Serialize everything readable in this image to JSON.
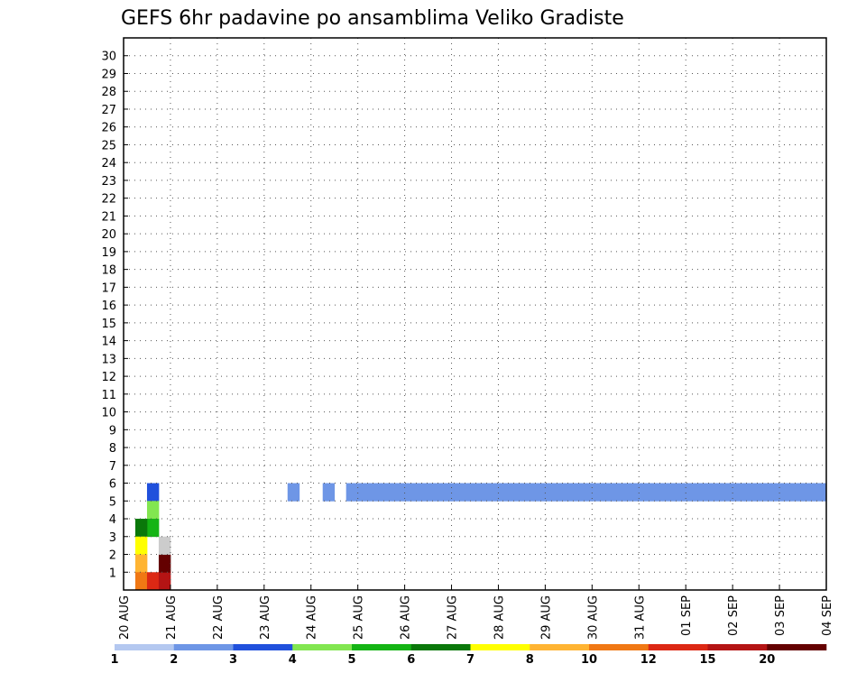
{
  "chart_data": {
    "type": "heatmap",
    "title": "GEFS 6hr padavine po ansamblima Veliko Gradiste",
    "x_tick_labels": [
      "20 AUG",
      "21 AUG",
      "22 AUG",
      "23 AUG",
      "24 AUG",
      "25 AUG",
      "26 AUG",
      "27 AUG",
      "28 AUG",
      "29 AUG",
      "30 AUG",
      "31 AUG",
      "01 SEP",
      "02 SEP",
      "03 SEP",
      "04 SEP"
    ],
    "y_tick_labels": [
      "1",
      "2",
      "3",
      "4",
      "5",
      "6",
      "7",
      "8",
      "9",
      "10",
      "11",
      "12",
      "13",
      "14",
      "15",
      "16",
      "17",
      "18",
      "19",
      "20",
      "21",
      "22",
      "23",
      "24",
      "25",
      "26",
      "27",
      "28",
      "29",
      "30"
    ],
    "x_steps": 60,
    "y_rows": 31,
    "grid": true,
    "legend_placement": "bottom",
    "legend": {
      "levels": [
        "1",
        "2",
        "3",
        "4",
        "5",
        "6",
        "7",
        "8",
        "10",
        "12",
        "15",
        "20"
      ],
      "colors": [
        "#b4c8f0",
        "#6e96e6",
        "#2050dc",
        "#82e650",
        "#14b414",
        "#0a780a",
        "#ffff00",
        "#ffb432",
        "#f07814",
        "#dc2814",
        "#b41414",
        "#640000"
      ]
    },
    "cells_note": "each cell: [time_step, member_row, color_class]; row 0 = unlabeled bottom member",
    "cells": [
      [
        14,
        5,
        1
      ],
      [
        17,
        5,
        1
      ],
      [
        19,
        5,
        1
      ],
      [
        20,
        5,
        1
      ],
      [
        21,
        5,
        1
      ],
      [
        22,
        5,
        1
      ],
      [
        23,
        5,
        1
      ],
      [
        24,
        5,
        1
      ],
      [
        25,
        5,
        1
      ],
      [
        26,
        5,
        1
      ],
      [
        27,
        5,
        1
      ],
      [
        28,
        5,
        1
      ],
      [
        29,
        5,
        1
      ],
      [
        30,
        5,
        1
      ],
      [
        31,
        5,
        1
      ],
      [
        32,
        5,
        1
      ],
      [
        33,
        5,
        1
      ],
      [
        34,
        5,
        1
      ],
      [
        35,
        5,
        1
      ],
      [
        36,
        5,
        1
      ],
      [
        37,
        5,
        1
      ],
      [
        38,
        5,
        1
      ],
      [
        39,
        5,
        1
      ],
      [
        40,
        5,
        1
      ],
      [
        41,
        5,
        1
      ],
      [
        42,
        5,
        1
      ],
      [
        43,
        5,
        1
      ],
      [
        44,
        5,
        1
      ],
      [
        45,
        5,
        1
      ],
      [
        46,
        5,
        1
      ],
      [
        47,
        5,
        1
      ],
      [
        48,
        5,
        1
      ],
      [
        49,
        5,
        1
      ],
      [
        50,
        5,
        1
      ],
      [
        51,
        5,
        1
      ],
      [
        52,
        5,
        1
      ],
      [
        53,
        5,
        1
      ],
      [
        54,
        5,
        1
      ],
      [
        55,
        5,
        1
      ],
      [
        56,
        5,
        1
      ],
      [
        57,
        5,
        1
      ],
      [
        58,
        5,
        1
      ],
      [
        59,
        5,
        1
      ],
      [
        2,
        5,
        2
      ],
      [
        2,
        4,
        3
      ],
      [
        2,
        3,
        4
      ],
      [
        1,
        3,
        5
      ],
      [
        1,
        2,
        6
      ],
      [
        1,
        1,
        7
      ],
      [
        1,
        0,
        8
      ],
      [
        2,
        0,
        9
      ],
      [
        3,
        0,
        10
      ],
      [
        3,
        1,
        11
      ],
      [
        3,
        2,
        12
      ]
    ]
  }
}
